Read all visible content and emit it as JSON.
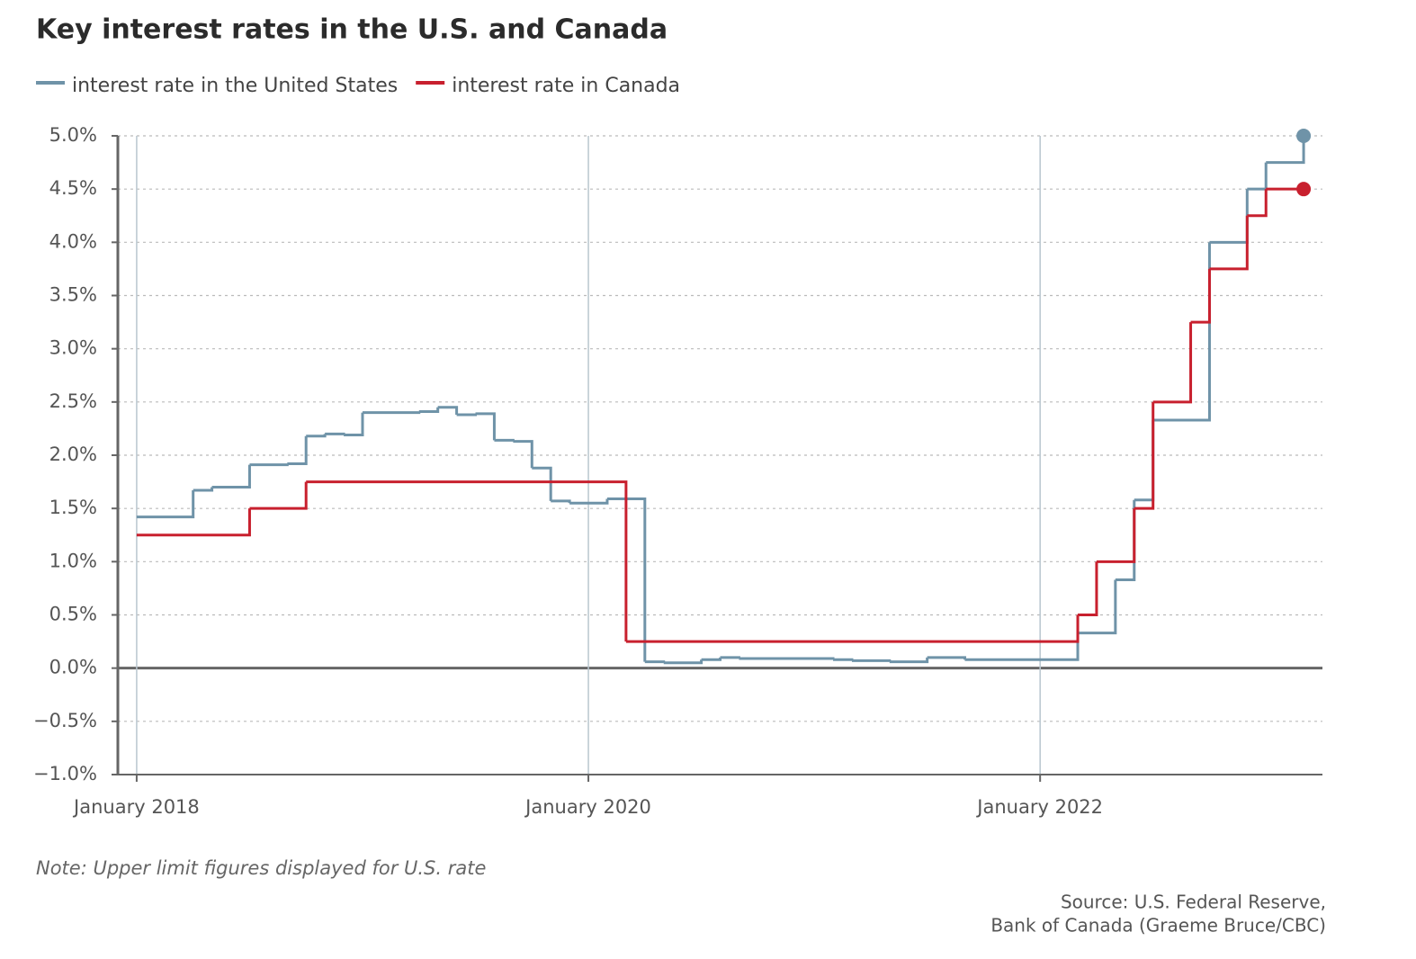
{
  "chart_data": {
    "type": "step",
    "title": "Key interest rates in the U.S. and Canada",
    "note": "Note: Upper limit figures displayed for U.S. rate",
    "source": [
      "Source: U.S. Federal Reserve,",
      "Bank of Canada (Graeme Bruce/CBC)"
    ],
    "xlim": [
      "2017-12",
      "2023-04"
    ],
    "xticks": [
      {
        "value": "2018-01",
        "label": "January 2018"
      },
      {
        "value": "2020-01",
        "label": "January 2020"
      },
      {
        "value": "2022-01",
        "label": "January 2022"
      }
    ],
    "ylim": [
      -1,
      5
    ],
    "yticks": [
      {
        "value": -1,
        "label": "−1.0%"
      },
      {
        "value": -0.5,
        "label": "−0.5%"
      },
      {
        "value": 0,
        "label": "0.0%"
      },
      {
        "value": 0.5,
        "label": "0.5%"
      },
      {
        "value": 1,
        "label": "1.0%"
      },
      {
        "value": 1.5,
        "label": "1.5%"
      },
      {
        "value": 2,
        "label": "2.0%"
      },
      {
        "value": 2.5,
        "label": "2.5%"
      },
      {
        "value": 3,
        "label": "3.0%"
      },
      {
        "value": 3.5,
        "label": "3.5%"
      },
      {
        "value": 4,
        "label": "4.0%"
      },
      {
        "value": 4.5,
        "label": "4.5%"
      },
      {
        "value": 5,
        "label": "5.0%"
      }
    ],
    "grid": true,
    "series": [
      {
        "name": "interest rate in the United States",
        "color": "#6f93a8",
        "x": [
          "2018-01",
          "2018-04",
          "2018-05",
          "2018-07",
          "2018-09",
          "2018-10",
          "2018-11",
          "2018-12",
          "2019-01",
          "2019-04",
          "2019-05",
          "2019-06",
          "2019-07",
          "2019-08",
          "2019-09",
          "2019-10",
          "2019-11",
          "2019-12",
          "2020-02",
          "2020-04",
          "2020-05",
          "2020-07",
          "2020-08",
          "2020-09",
          "2021-02",
          "2021-03",
          "2021-05",
          "2021-07",
          "2021-09",
          "2022-03",
          "2022-05",
          "2022-06",
          "2022-07",
          "2022-10",
          "2022-12",
          "2023-01",
          "2023-03"
        ],
        "values": [
          1.42,
          1.67,
          1.7,
          1.91,
          1.92,
          2.18,
          2.2,
          2.19,
          2.4,
          2.41,
          2.45,
          2.38,
          2.39,
          2.14,
          2.13,
          1.88,
          1.57,
          1.55,
          1.59,
          0.06,
          0.05,
          0.08,
          0.1,
          0.09,
          0.08,
          0.07,
          0.06,
          0.1,
          0.08,
          0.33,
          0.83,
          1.58,
          2.33,
          4.0,
          4.5,
          4.75,
          5.0
        ]
      },
      {
        "name": "interest rate in Canada",
        "color": "#c8202e",
        "x": [
          "2018-01",
          "2018-07",
          "2018-10",
          "2020-03",
          "2022-03",
          "2022-04",
          "2022-06",
          "2022-07",
          "2022-09",
          "2022-10",
          "2022-12",
          "2023-01",
          "2023-03"
        ],
        "values": [
          1.25,
          1.5,
          1.75,
          0.25,
          0.5,
          1.0,
          1.5,
          2.5,
          3.25,
          3.75,
          4.25,
          4.5,
          4.5
        ]
      }
    ]
  }
}
